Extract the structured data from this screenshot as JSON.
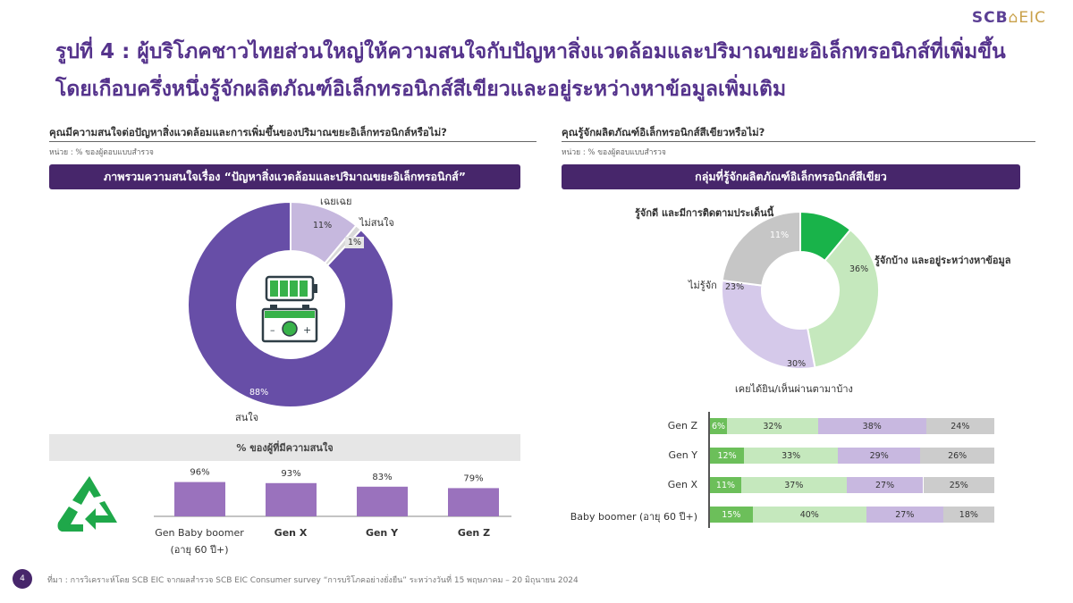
{
  "logo": {
    "scb": "SCB",
    "eic": "EIC"
  },
  "title": {
    "line1": "รูปที่ 4 : ผู้บริโภคชาวไทยส่วนใหญ่ให้ความสนใจกับปัญหาสิ่งแวดล้อมและปริมาณขยะอิเล็กทรอนิกส์ที่เพิ่มขึ้น",
    "line2": "โดยเกือบครึ่งหนึ่งรู้จักผลิตภัณฑ์อิเล็กทรอนิกส์สีเขียวและอยู่ระหว่างหาข้อมูลเพิ่มเติม"
  },
  "left": {
    "question": "คุณมีความสนใจต่อปัญหาสิ่งแวดล้อมและการเพิ่มขึ้นของปริมาณขยะอิเล็กทรอนิกส์หรือไม่?",
    "unit": "หน่วย : % ของผู้ตอบแบบสำรวจ",
    "banner": "ภาพรวมความสนใจเรื่อง “ปัญหาสิ่งแวดล้อมและปริมาณขยะอิเล็กทรอนิกส์”",
    "interest_label": "% ของผู้ที่มีความสนใจ"
  },
  "right": {
    "question": "คุณรู้จักผลิตภัณฑ์อิเล็กทรอนิกส์สีเขียวหรือไม่?",
    "unit": "หน่วย : % ของผู้ตอบแบบสำรวจ",
    "banner": "กลุ่มที่รู้จักผลิตภัณฑ์อิเล็กทรอนิกส์สีเขียว"
  },
  "chart_data": [
    {
      "type": "pie",
      "slices": [
        {
          "label": "เฉยเฉย",
          "value": 11,
          "color": "#c6b8de"
        },
        {
          "label": "ไม่สนใจ",
          "value": 1,
          "color": "#d9d9d9"
        },
        {
          "label": "สนใจ",
          "value": 88,
          "color": "#674ea7"
        }
      ],
      "value_labels": [
        "11%",
        "1%",
        "88%"
      ]
    },
    {
      "type": "bar",
      "categories": [
        "Gen Baby boomer\n(อายุ 60 ปี+)",
        "Gen X",
        "Gen Y",
        "Gen Z"
      ],
      "values": [
        96,
        93,
        83,
        79
      ],
      "value_labels": [
        "96%",
        "93%",
        "83%",
        "79%"
      ],
      "color": "#9a72bd"
    },
    {
      "type": "pie",
      "slices": [
        {
          "label": "รู้จักดี และมีการติดตามประเด็นนี้",
          "value": 11,
          "color": "#19b34a"
        },
        {
          "label": "รู้จักบ้าง และอยู่ระหว่างหาข้อมูล",
          "value": 36,
          "color": "#c5e8bd"
        },
        {
          "label": "เคยได้ยิน/เห็นผ่านตามาบ้าง",
          "value": 30,
          "color": "#d5c9ea"
        },
        {
          "label": "ไม่รู้จัก",
          "value": 23,
          "color": "#c6c6c6"
        }
      ],
      "value_labels": [
        "11%",
        "36%",
        "30%",
        "23%"
      ]
    },
    {
      "type": "bar",
      "orientation": "horizontal",
      "stacked": true,
      "categories": [
        "Gen Z",
        "Gen Y",
        "Gen X",
        "Baby boomer (อายุ 60 ปี+)"
      ],
      "series": [
        {
          "values": [
            6,
            12,
            11,
            15
          ],
          "labels": [
            "6%",
            "12%",
            "11%",
            "15%"
          ],
          "color": "#6cbf5a"
        },
        {
          "values": [
            32,
            33,
            37,
            40
          ],
          "labels": [
            "32%",
            "33%",
            "37%",
            "40%"
          ],
          "color": "#c5e8bd"
        },
        {
          "values": [
            38,
            29,
            27,
            27
          ],
          "labels": [
            "38%",
            "29%",
            "27%",
            "27%"
          ],
          "color": "#c8b8e0"
        },
        {
          "values": [
            24,
            26,
            25,
            18
          ],
          "labels": [
            "24%",
            "26%",
            "25%",
            "18%"
          ],
          "color": "#cccccc"
        }
      ]
    }
  ],
  "footer": {
    "page": "4",
    "source": "ที่มา : การวิเคราะห์โดย SCB EIC จากผลสำรวจ SCB EIC Consumer survey “การบริโภคอย่างยั่งยืน” ระหว่างวันที่ 15 พฤษภาคม – 20 มิถุนายน 2024"
  },
  "icons": [
    "battery-icon",
    "recycle-icon"
  ]
}
